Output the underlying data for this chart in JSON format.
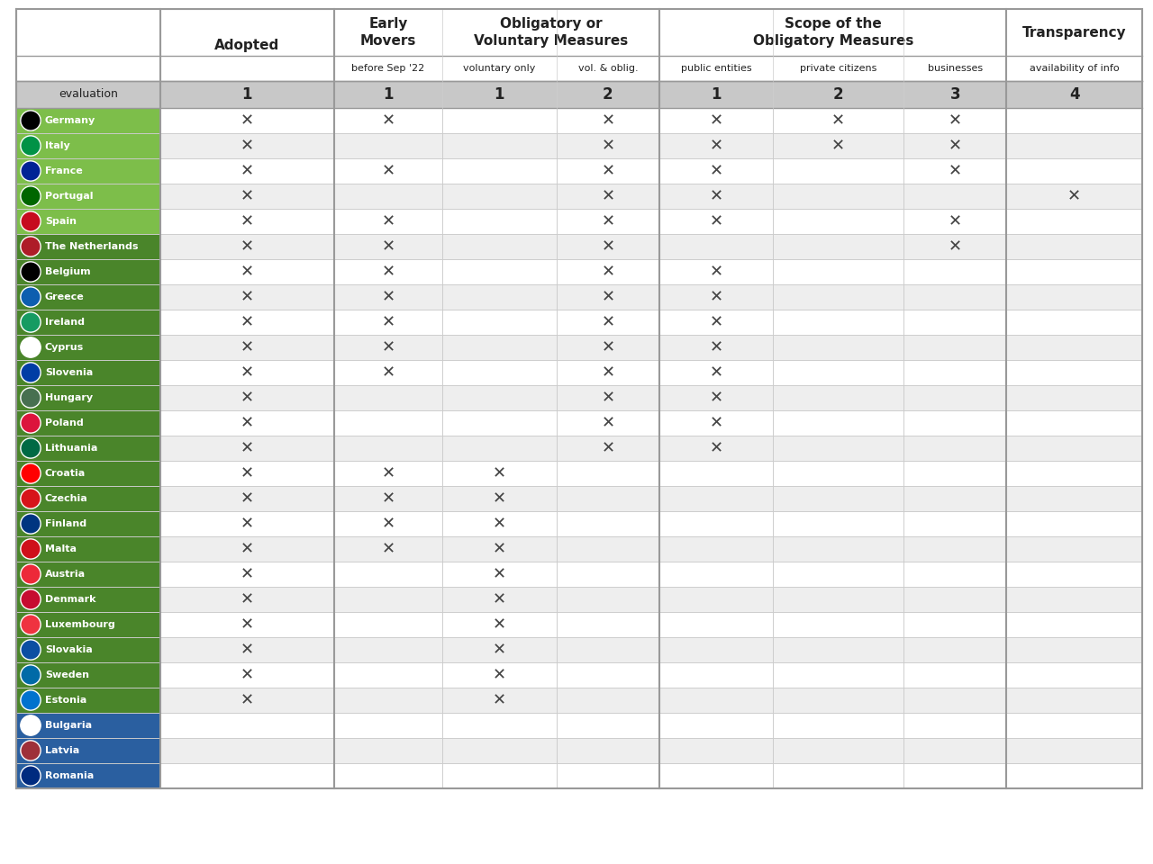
{
  "col_headers": [
    "Adopted",
    "before Sep '22",
    "voluntary only",
    "vol. & oblig.",
    "public entities",
    "private citizens",
    "businesses",
    "availability of info"
  ],
  "col_scores": [
    "1",
    "1",
    "1",
    "2",
    "1",
    "2",
    "3",
    "4"
  ],
  "groups": [
    {
      "label": "",
      "start": 0,
      "end": 0
    },
    {
      "label": "Early\nMovers",
      "start": 1,
      "end": 1
    },
    {
      "label": "Obligatory or\nVoluntary Measures",
      "start": 2,
      "end": 3
    },
    {
      "label": "Scope of the\nObligatory Measures",
      "start": 4,
      "end": 6
    },
    {
      "label": "Transparency",
      "start": 7,
      "end": 7
    }
  ],
  "countries": [
    "Germany",
    "Italy",
    "France",
    "Portugal",
    "Spain",
    "The Netherlands",
    "Belgium",
    "Greece",
    "Ireland",
    "Cyprus",
    "Slovenia",
    "Hungary",
    "Poland",
    "Lithuania",
    "Croatia",
    "Czechia",
    "Finland",
    "Malta",
    "Austria",
    "Denmark",
    "Luxembourg",
    "Slovakia",
    "Sweden",
    "Estonia",
    "Bulgaria",
    "Latvia",
    "Romania"
  ],
  "row_colors": [
    "#7dbe4a",
    "#7dbe4a",
    "#7dbe4a",
    "#7dbe4a",
    "#7dbe4a",
    "#4a852a",
    "#4a852a",
    "#4a852a",
    "#4a852a",
    "#4a852a",
    "#4a852a",
    "#4a852a",
    "#4a852a",
    "#4a852a",
    "#4a852a",
    "#4a852a",
    "#4a852a",
    "#4a852a",
    "#4a852a",
    "#4a852a",
    "#4a852a",
    "#4a852a",
    "#4a852a",
    "#4a852a",
    "#2a5fa0",
    "#2a5fa0",
    "#2a5fa0"
  ],
  "marks": [
    [
      1,
      1,
      0,
      1,
      1,
      1,
      1,
      0
    ],
    [
      1,
      0,
      0,
      1,
      1,
      1,
      1,
      0
    ],
    [
      1,
      1,
      0,
      1,
      1,
      0,
      1,
      0
    ],
    [
      1,
      0,
      0,
      1,
      1,
      0,
      0,
      1
    ],
    [
      1,
      1,
      0,
      1,
      1,
      0,
      1,
      0
    ],
    [
      1,
      1,
      0,
      1,
      0,
      0,
      1,
      0
    ],
    [
      1,
      1,
      0,
      1,
      1,
      0,
      0,
      0
    ],
    [
      1,
      1,
      0,
      1,
      1,
      0,
      0,
      0
    ],
    [
      1,
      1,
      0,
      1,
      1,
      0,
      0,
      0
    ],
    [
      1,
      1,
      0,
      1,
      1,
      0,
      0,
      0
    ],
    [
      1,
      1,
      0,
      1,
      1,
      0,
      0,
      0
    ],
    [
      1,
      0,
      0,
      1,
      1,
      0,
      0,
      0
    ],
    [
      1,
      0,
      0,
      1,
      1,
      0,
      0,
      0
    ],
    [
      1,
      0,
      0,
      1,
      1,
      0,
      0,
      0
    ],
    [
      1,
      1,
      1,
      0,
      0,
      0,
      0,
      0
    ],
    [
      1,
      1,
      1,
      0,
      0,
      0,
      0,
      0
    ],
    [
      1,
      1,
      1,
      0,
      0,
      0,
      0,
      0
    ],
    [
      1,
      1,
      1,
      0,
      0,
      0,
      0,
      0
    ],
    [
      1,
      0,
      1,
      0,
      0,
      0,
      0,
      0
    ],
    [
      1,
      0,
      1,
      0,
      0,
      0,
      0,
      0
    ],
    [
      1,
      0,
      1,
      0,
      0,
      0,
      0,
      0
    ],
    [
      1,
      0,
      1,
      0,
      0,
      0,
      0,
      0
    ],
    [
      1,
      0,
      1,
      0,
      0,
      0,
      0,
      0
    ],
    [
      1,
      0,
      1,
      0,
      0,
      0,
      0,
      0
    ],
    [
      0,
      0,
      0,
      0,
      0,
      0,
      0,
      0
    ],
    [
      0,
      0,
      0,
      0,
      0,
      0,
      0,
      0
    ],
    [
      0,
      0,
      0,
      0,
      0,
      0,
      0,
      0
    ]
  ],
  "flag_colors": [
    [
      "#000000",
      "#dd0000",
      "#ffce00"
    ],
    [
      "#009246",
      "#ffffff",
      "#ce2b37"
    ],
    [
      "#002395",
      "#ffffff",
      "#ED2939"
    ],
    [
      "#006600",
      "#ffffff",
      "#ff0000"
    ],
    [
      "#c60b1e",
      "#ffc400",
      "#c60b1e"
    ],
    [
      "#ae1c28",
      "#ffffff",
      "#21468b"
    ],
    [
      "#000000",
      "#ffdd00",
      "#ff0000"
    ],
    [
      "#0d5eaf",
      "#ffffff",
      "#0d5eaf"
    ],
    [
      "#169b62",
      "#ffffff",
      "#ff883e"
    ],
    [
      "#ffffff",
      "#d57e28",
      "#4e8ece"
    ],
    [
      "#003da5",
      "#ffffff",
      "#003da5"
    ],
    [
      "#477050",
      "#ffffff",
      "#ce2939"
    ],
    [
      "#dc143c",
      "#ffffff",
      "#dc143c"
    ],
    [
      "#006a44",
      "#c1272d",
      "#fdb913"
    ],
    [
      "#ff0000",
      "#ffffff",
      "#0000cd"
    ],
    [
      "#d7141a",
      "#ffffff",
      "#11457e"
    ],
    [
      "#003580",
      "#ffffff",
      "#003580"
    ],
    [
      "#cf101a",
      "#ffffff",
      "#cf101a"
    ],
    [
      "#ed2939",
      "#ffffff",
      "#ed2939"
    ],
    [
      "#c60c30",
      "#ffffff",
      "#c60c30"
    ],
    [
      "#EF3340",
      "#ffffff",
      "#00A3E0"
    ],
    [
      "#0b4ea2",
      "#ffffff",
      "#ee1c25"
    ],
    [
      "#006aa7",
      "#fecc02",
      "#006aa7"
    ],
    [
      "#0072ce",
      "#000000",
      "#ffffff"
    ],
    [
      "#ffffff",
      "#009a44",
      "#d01c1f"
    ],
    [
      "#9e3039",
      "#ffffff",
      "#9e3039"
    ],
    [
      "#002B7F",
      "#FCD116",
      "#CE1126"
    ]
  ],
  "header_bg": "#c8c8c8",
  "bg_white": "#ffffff",
  "bg_light": "#eeeeee",
  "border_light": "#cccccc",
  "border_dark": "#999999",
  "text_dark": "#222222",
  "mark_color": "#444444",
  "separator_col_indices": [
    1,
    4,
    7
  ],
  "col_widths_rel": [
    1.6,
    1.0,
    1.05,
    0.95,
    1.05,
    1.2,
    0.95,
    1.25
  ]
}
